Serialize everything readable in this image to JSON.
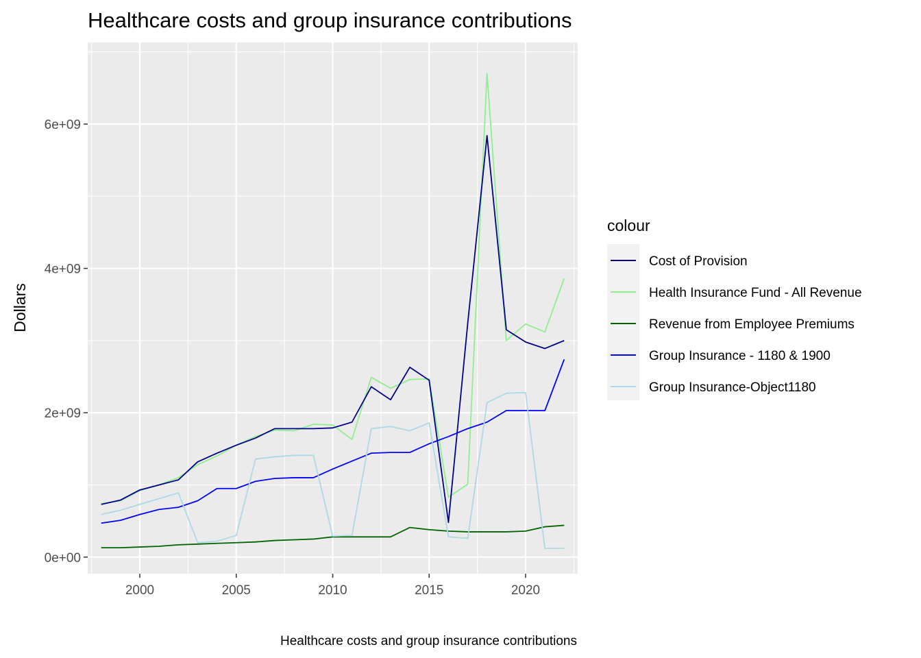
{
  "chart_data": {
    "type": "line",
    "title": "Healthcare costs and group insurance contributions",
    "xlabel": "Healthcare costs and group insurance contributions",
    "ylabel": "Dollars",
    "xlim": [
      1997.3,
      2022.7
    ],
    "ylim": [
      -230000000,
      7130000000
    ],
    "x_ticks": [
      2000,
      2005,
      2010,
      2015,
      2020
    ],
    "x_tick_labels": [
      "2000",
      "2005",
      "2010",
      "2015",
      "2020"
    ],
    "y_ticks": [
      0,
      2000000000,
      4000000000,
      6000000000
    ],
    "y_tick_labels": [
      "0e+00",
      "2e+09",
      "4e+09",
      "6e+09"
    ],
    "grid": true,
    "panel_background": "#ebebeb",
    "legend": {
      "title": "colour",
      "position": "right"
    },
    "x": [
      1998,
      1999,
      2000,
      2001,
      2002,
      2003,
      2004,
      2005,
      2006,
      2007,
      2008,
      2009,
      2010,
      2011,
      2012,
      2013,
      2014,
      2015,
      2016,
      2017,
      2018,
      2019,
      2020,
      2021,
      2022
    ],
    "series": [
      {
        "name": "Health Insurance Fund - All Revenue",
        "color": "#90ee90",
        "values": [
          740000000,
          780000000,
          920000000,
          1000000000,
          1100000000,
          1280000000,
          1400000000,
          1550000000,
          1670000000,
          1760000000,
          1750000000,
          1840000000,
          1830000000,
          1630000000,
          2490000000,
          2340000000,
          2460000000,
          2470000000,
          830000000,
          1010000000,
          6700000000,
          3000000000,
          3230000000,
          3120000000,
          3860000000
        ]
      },
      {
        "name": "Cost of Provision",
        "color": "#00008b",
        "values": [
          730000000,
          790000000,
          930000000,
          1000000000,
          1070000000,
          1320000000,
          1440000000,
          1550000000,
          1650000000,
          1780000000,
          1780000000,
          1780000000,
          1790000000,
          1870000000,
          2360000000,
          2180000000,
          2630000000,
          2450000000,
          480000000,
          3240000000,
          5840000000,
          3150000000,
          2980000000,
          2890000000,
          3000000000
        ]
      },
      {
        "name": "Revenue from Employee Premiums",
        "color": "#006400",
        "values": [
          130000000,
          130000000,
          140000000,
          150000000,
          170000000,
          180000000,
          190000000,
          200000000,
          210000000,
          230000000,
          240000000,
          250000000,
          280000000,
          280000000,
          280000000,
          280000000,
          410000000,
          380000000,
          360000000,
          350000000,
          350000000,
          350000000,
          360000000,
          420000000,
          440000000
        ]
      },
      {
        "name": "Group Insurance - 1180 & 1900",
        "color": "#0000ff",
        "values": [
          470000000,
          510000000,
          590000000,
          660000000,
          690000000,
          780000000,
          950000000,
          950000000,
          1050000000,
          1090000000,
          1100000000,
          1100000000,
          1220000000,
          1330000000,
          1440000000,
          1450000000,
          1450000000,
          1570000000,
          1670000000,
          1780000000,
          1870000000,
          2030000000,
          2030000000,
          2030000000,
          2740000000
        ]
      },
      {
        "name": "Group Insurance-Object1180",
        "color": "#add8e6",
        "values": [
          590000000,
          650000000,
          730000000,
          810000000,
          890000000,
          200000000,
          220000000,
          300000000,
          1360000000,
          1390000000,
          1410000000,
          1410000000,
          290000000,
          300000000,
          1780000000,
          1810000000,
          1750000000,
          1860000000,
          280000000,
          260000000,
          2140000000,
          2270000000,
          2280000000,
          120000000,
          120000000
        ]
      }
    ],
    "legend_order": [
      "Cost of Provision",
      "Health Insurance Fund - All Revenue",
      "Revenue from Employee Premiums",
      "Group Insurance - 1180 & 1900",
      "Group Insurance-Object1180"
    ]
  }
}
